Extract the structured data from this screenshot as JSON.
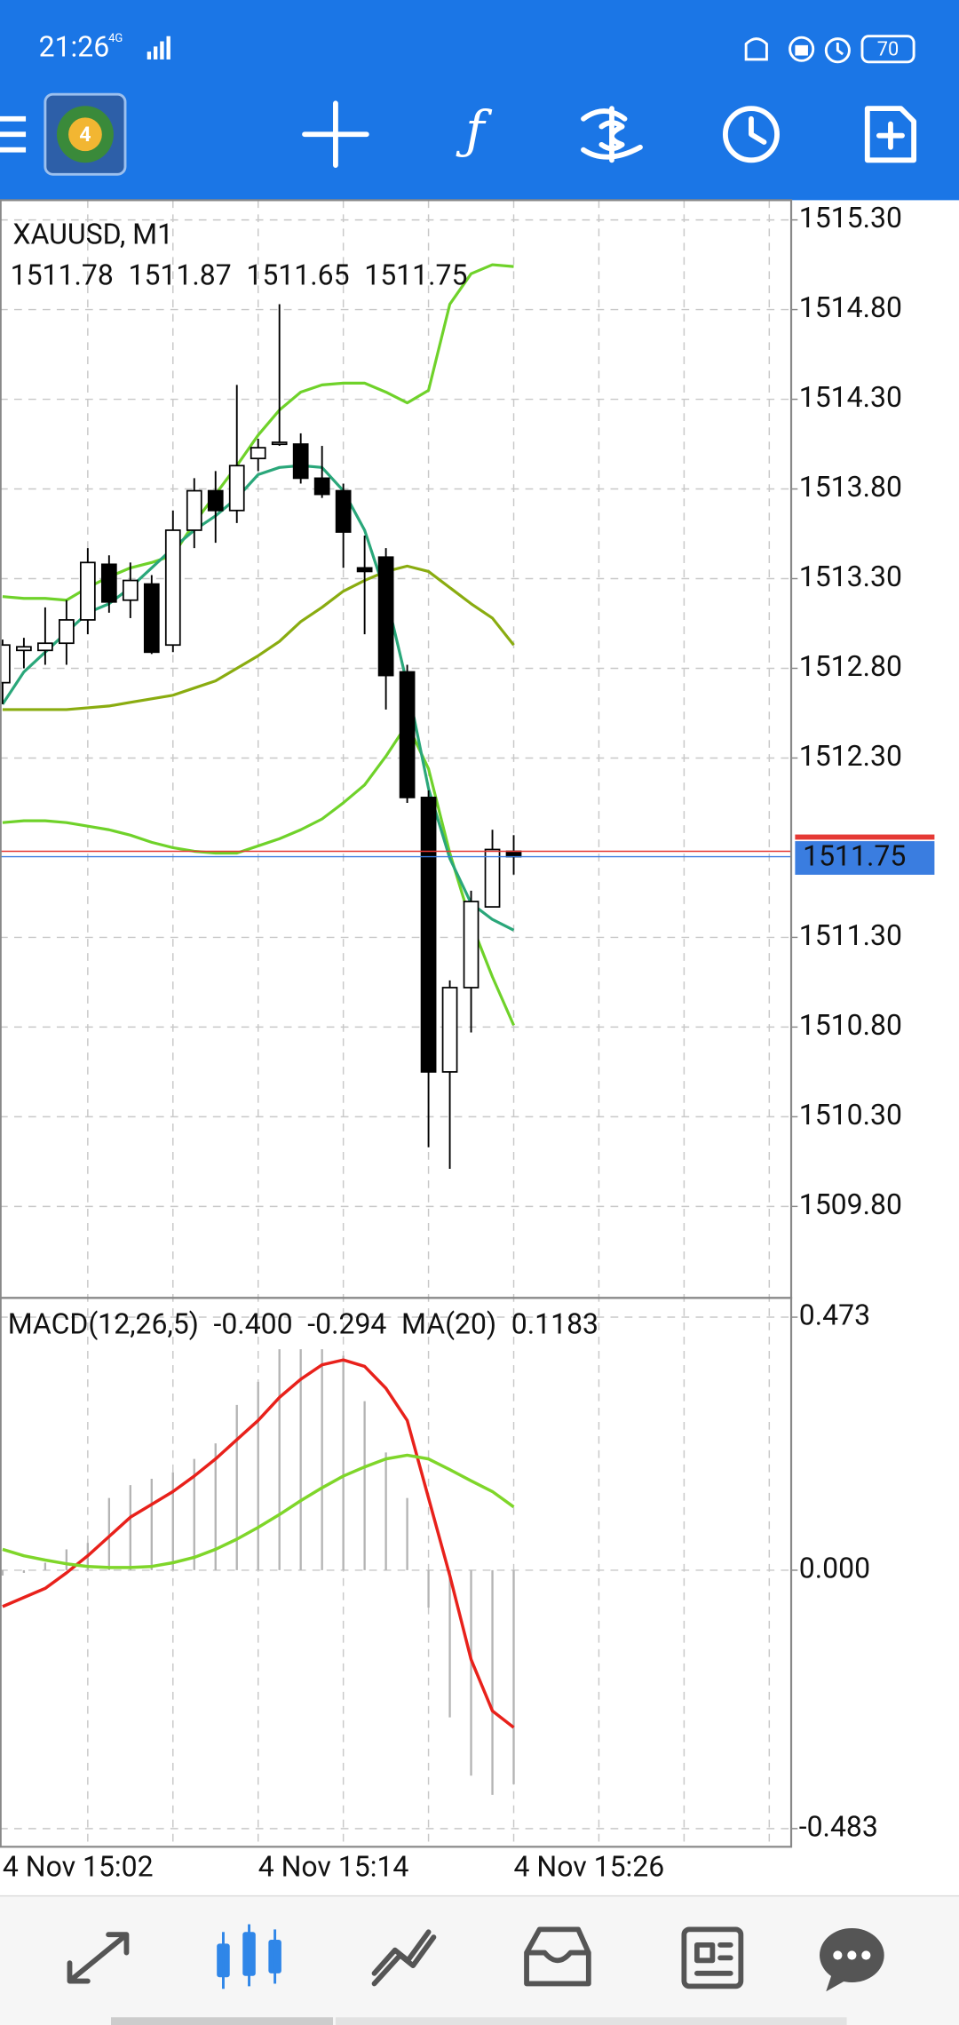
{
  "status_bar": {
    "time": "21:26",
    "network": "4G",
    "battery": "70"
  },
  "toolbar": {
    "logo_label": "4"
  },
  "chart_data": [
    {
      "type": "candlestick",
      "title": "XAUUSD, M1",
      "categories": [
        "4 Nov 15:02",
        null,
        null,
        null,
        null,
        null,
        null,
        null,
        null,
        null,
        null,
        null,
        "4 Nov 15:14",
        null,
        null,
        null,
        null,
        null,
        null,
        null,
        null,
        null,
        null,
        null,
        "4 Nov 15:26"
      ],
      "open": [
        1512.72,
        1512.9,
        1512.9,
        1512.94,
        1513.07,
        1513.38,
        1513.18,
        1513.27,
        1512.93,
        1513.57,
        1513.79,
        1513.68,
        1513.97,
        1514.05,
        1514.05,
        1513.86,
        1513.79,
        1513.36,
        1513.42,
        1512.78,
        1512.08,
        1510.55,
        1511.02,
        1511.47,
        1511.78
      ],
      "high": [
        1512.96,
        1512.97,
        1513.14,
        1513.18,
        1513.47,
        1513.43,
        1513.39,
        1513.32,
        1513.68,
        1513.86,
        1513.9,
        1514.38,
        1514.08,
        1514.83,
        1514.11,
        1514.04,
        1513.83,
        1513.54,
        1513.47,
        1512.82,
        1512.12,
        1511.06,
        1511.56,
        1511.9,
        1511.87
      ],
      "low": [
        1512.6,
        1512.8,
        1512.82,
        1512.82,
        1512.99,
        1513.11,
        1513.08,
        1512.88,
        1512.89,
        1513.47,
        1513.5,
        1513.61,
        1513.9,
        1514.04,
        1513.83,
        1513.75,
        1513.36,
        1512.99,
        1512.57,
        1512.05,
        1510.13,
        1510.01,
        1510.77,
        1511.47,
        1511.65
      ],
      "close": [
        1512.93,
        1512.92,
        1512.94,
        1513.07,
        1513.39,
        1513.17,
        1513.29,
        1512.89,
        1513.57,
        1513.79,
        1513.68,
        1513.93,
        1514.03,
        1514.06,
        1513.86,
        1513.77,
        1513.56,
        1513.34,
        1512.76,
        1512.08,
        1510.55,
        1511.02,
        1511.5,
        1511.79,
        1511.75
      ],
      "bull_color": "#ffffff",
      "bear_color": "#000000",
      "series": [
        {
          "color": "#6fd22a",
          "values": [
            1513.2,
            1513.19,
            1513.19,
            1513.18,
            1513.25,
            1513.31,
            1513.36,
            1513.39,
            1513.43,
            1513.61,
            1513.77,
            1513.93,
            1514.1,
            1514.24,
            1514.34,
            1514.38,
            1514.39,
            1514.39,
            1514.34,
            1514.28,
            1514.35,
            1514.83,
            1515.0,
            1515.05,
            1515.04
          ]
        },
        {
          "color": "#8aac10",
          "values": [
            1512.57,
            1512.57,
            1512.57,
            1512.57,
            1512.58,
            1512.59,
            1512.61,
            1512.63,
            1512.65,
            1512.69,
            1512.73,
            1512.8,
            1512.87,
            1512.95,
            1513.06,
            1513.14,
            1513.23,
            1513.29,
            1513.34,
            1513.37,
            1513.34,
            1513.25,
            1513.16,
            1513.08,
            1512.93
          ]
        },
        {
          "color": "#6fd22a",
          "values": [
            1511.94,
            1511.95,
            1511.95,
            1511.94,
            1511.92,
            1511.9,
            1511.87,
            1511.83,
            1511.8,
            1511.78,
            1511.77,
            1511.77,
            1511.81,
            1511.85,
            1511.9,
            1511.96,
            1512.05,
            1512.15,
            1512.31,
            1512.49,
            1512.24,
            1511.77,
            1511.38,
            1511.08,
            1510.81
          ]
        },
        {
          "color": "#2aa77a",
          "values": [
            1512.6,
            1512.78,
            1512.89,
            1513.0,
            1513.11,
            1513.16,
            1513.25,
            1513.36,
            1513.47,
            1513.57,
            1513.65,
            1513.75,
            1513.88,
            1513.92,
            1513.93,
            1513.92,
            1513.79,
            1513.57,
            1513.21,
            1512.71,
            1512.13,
            1511.74,
            1511.49,
            1511.4,
            1511.34
          ]
        }
      ],
      "ask": 1511.78,
      "ask_color": "#e53935",
      "bid_color": "#3a7de0",
      "ylim": [
        1509.29,
        1515.41
      ],
      "yticks": [
        {
          "value": 1515.3,
          "label": "1515.30"
        },
        {
          "value": 1514.8,
          "label": "1514.80"
        },
        {
          "value": 1514.3,
          "label": "1514.30"
        },
        {
          "value": 1513.8,
          "label": "1513.80"
        },
        {
          "value": 1513.3,
          "label": "1513.30"
        },
        {
          "value": 1512.8,
          "label": "1512.80"
        },
        {
          "value": 1512.3,
          "label": "1512.30"
        },
        {
          "value": 1511.3,
          "label": "1511.30"
        },
        {
          "value": 1510.8,
          "label": "1510.80"
        },
        {
          "value": 1510.3,
          "label": "1510.30"
        },
        {
          "value": 1509.8,
          "label": "1509.80"
        }
      ],
      "grid": true
    },
    {
      "type": "macd",
      "histogram": {
        "name": "MACD(12,26,5)",
        "color": "#b4b4b4",
        "values": [
          -0.01,
          -0.005,
          0.014,
          0.039,
          0.051,
          0.135,
          0.159,
          0.171,
          0.183,
          0.208,
          0.237,
          0.309,
          0.352,
          0.413,
          0.413,
          0.413,
          0.401,
          0.316,
          0.22,
          0.135,
          -0.07,
          -0.275,
          -0.384,
          -0.42,
          -0.4
        ],
        "value_labels": [
          null,
          null,
          null,
          null,
          null,
          null,
          null,
          null,
          null,
          null,
          null,
          null,
          null,
          null,
          null,
          null,
          null,
          null,
          null,
          null,
          null,
          null,
          null,
          null,
          "-0.400"
        ]
      },
      "series": [
        {
          "color": "#e8211b",
          "values": [
            -0.068,
            -0.051,
            -0.034,
            -0.005,
            0.027,
            0.063,
            0.099,
            0.123,
            0.147,
            0.176,
            0.208,
            0.244,
            0.28,
            0.323,
            0.357,
            0.384,
            0.393,
            0.381,
            0.34,
            0.28,
            0.135,
            -0.01,
            -0.167,
            -0.263,
            -0.294
          ]
        },
        {
          "name": "MA(20)",
          "color": "#7fd62a",
          "values": [
            0.039,
            0.027,
            0.019,
            0.012,
            0.007,
            0.005,
            0.005,
            0.007,
            0.014,
            0.024,
            0.039,
            0.058,
            0.08,
            0.104,
            0.13,
            0.154,
            0.176,
            0.193,
            0.208,
            0.215,
            0.208,
            0.188,
            0.167,
            0.147,
            0.1183
          ]
        }
      ],
      "ylim": [
        -0.517,
        0.509
      ],
      "yticks": [
        0.473,
        {
          "value": 0,
          "label": "0.000"
        },
        -0.483
      ],
      "grid": true
    }
  ]
}
